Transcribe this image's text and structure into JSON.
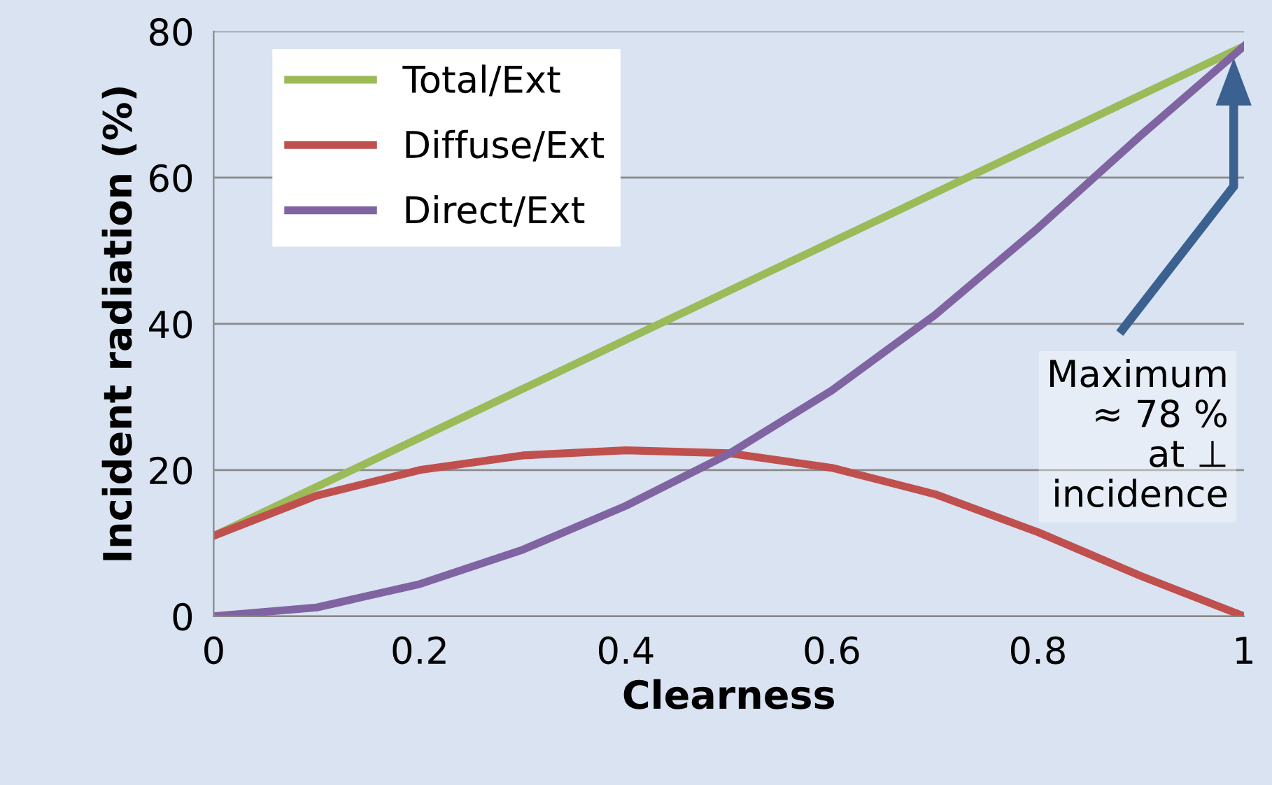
{
  "chart_data": {
    "type": "line",
    "xlabel": "Clearness",
    "ylabel": "Incident radiation (%)",
    "x": [
      0,
      0.1,
      0.2,
      0.3,
      0.4,
      0.5,
      0.6,
      0.7,
      0.8,
      0.9,
      1
    ],
    "series": [
      {
        "name": "Total/Ext",
        "color": "#9bbb59",
        "values": [
          11,
          17.7,
          24.4,
          31.1,
          37.8,
          44.5,
          51.2,
          57.9,
          64.6,
          71.3,
          78
        ]
      },
      {
        "name": "Diffuse/Ext",
        "color": "#c0504d",
        "values": [
          11,
          16.5,
          20,
          22,
          22.7,
          22.3,
          20.3,
          16.7,
          11.5,
          5.5,
          0
        ]
      },
      {
        "name": "Direct/Ext",
        "color": "#8064a2",
        "values": [
          0,
          1.2,
          4.4,
          9.1,
          15.1,
          22.2,
          30.9,
          41.2,
          53.1,
          65.8,
          78
        ]
      }
    ],
    "xlim": [
      0,
      1
    ],
    "xticks": [
      0,
      0.2,
      0.4,
      0.6,
      0.8,
      1
    ],
    "ylim": [
      0,
      80
    ],
    "yticks": [
      0,
      20,
      40,
      60,
      80
    ],
    "grid": "y",
    "legend": "top left",
    "marker": "none",
    "line_style": "solid",
    "annotations": [
      "Maximum\n≈ 78 %\nat ⊥\nincidence"
    ]
  }
}
